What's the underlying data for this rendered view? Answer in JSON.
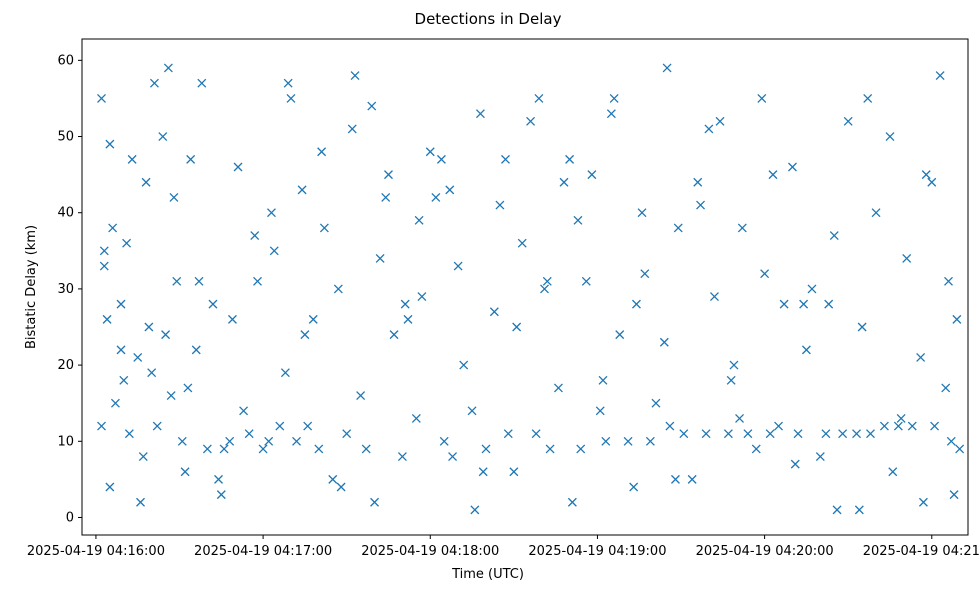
{
  "chart_data": {
    "type": "scatter",
    "title": "Detections in Delay",
    "xlabel": "Time (UTC)",
    "ylabel": "Bistatic Delay (km)",
    "x_axis_type": "datetime",
    "xlim": [
      "2025-04-19 04:15:55",
      "2025-04-19 04:21:13"
    ],
    "ylim": [
      -2.3,
      62.8
    ],
    "x_ticks": [
      "2025-04-19 04:16:00",
      "2025-04-19 04:17:00",
      "2025-04-19 04:18:00",
      "2025-04-19 04:19:00",
      "2025-04-19 04:20:00",
      "2025-04-19 04:21:00"
    ],
    "y_ticks": [
      "0",
      "10",
      "20",
      "30",
      "40",
      "50",
      "60"
    ],
    "marker": "x",
    "color": "#1f77b4",
    "grid": false,
    "legend": "none",
    "series": [
      {
        "x": [
          "2025-04-19 04:16:02",
          "2025-04-19 04:16:02",
          "2025-04-19 04:16:03",
          "2025-04-19 04:16:03",
          "2025-04-19 04:16:04",
          "2025-04-19 04:16:05",
          "2025-04-19 04:16:06",
          "2025-04-19 04:16:07",
          "2025-04-19 04:16:09",
          "2025-04-19 04:16:10",
          "2025-04-19 04:16:12",
          "2025-04-19 04:16:13",
          "2025-04-19 04:16:15",
          "2025-04-19 04:16:17",
          "2025-04-19 04:16:18",
          "2025-04-19 04:16:19",
          "2025-04-19 04:16:20",
          "2025-04-19 04:16:22",
          "2025-04-19 04:16:24",
          "2025-04-19 04:16:25",
          "2025-04-19 04:16:27",
          "2025-04-19 04:16:28",
          "2025-04-19 04:16:29",
          "2025-04-19 04:16:31",
          "2025-04-19 04:16:32",
          "2025-04-19 04:16:34",
          "2025-04-19 04:16:36",
          "2025-04-19 04:16:38",
          "2025-04-19 04:16:40",
          "2025-04-19 04:16:42",
          "2025-04-19 04:16:44",
          "2025-04-19 04:16:46",
          "2025-04-19 04:16:48",
          "2025-04-19 04:16:51",
          "2025-04-19 04:16:53",
          "2025-04-19 04:16:55",
          "2025-04-19 04:16:58",
          "2025-04-19 04:17:00",
          "2025-04-19 04:17:02",
          "2025-04-19 04:17:04",
          "2025-04-19 04:17:06",
          "2025-04-19 04:17:08",
          "2025-04-19 04:17:10",
          "2025-04-19 04:17:12",
          "2025-04-19 04:17:14",
          "2025-04-19 04:17:16",
          "2025-04-19 04:17:18",
          "2025-04-19 04:17:20",
          "2025-04-19 04:17:22",
          "2025-04-19 04:17:25",
          "2025-04-19 04:17:27",
          "2025-04-19 04:17:30",
          "2025-04-19 04:17:32",
          "2025-04-19 04:17:35",
          "2025-04-19 04:17:37",
          "2025-04-19 04:17:40",
          "2025-04-19 04:17:42",
          "2025-04-19 04:17:45",
          "2025-04-19 04:17:47",
          "2025-04-19 04:17:50",
          "2025-04-19 04:17:52",
          "2025-04-19 04:17:55",
          "2025-04-19 04:17:57",
          "2025-04-19 04:18:00",
          "2025-04-19 04:18:02",
          "2025-04-19 04:18:05",
          "2025-04-19 04:18:08",
          "2025-04-19 04:18:10",
          "2025-04-19 04:18:12",
          "2025-04-19 04:18:15",
          "2025-04-19 04:18:18",
          "2025-04-19 04:18:20",
          "2025-04-19 04:18:23",
          "2025-04-19 04:18:25",
          "2025-04-19 04:18:28",
          "2025-04-19 04:18:30",
          "2025-04-19 04:18:33",
          "2025-04-19 04:18:36",
          "2025-04-19 04:18:38",
          "2025-04-19 04:18:41",
          "2025-04-19 04:18:43",
          "2025-04-19 04:18:46",
          "2025-04-19 04:18:48",
          "2025-04-19 04:18:51",
          "2025-04-19 04:18:54",
          "2025-04-19 04:18:56",
          "2025-04-19 04:18:58",
          "2025-04-19 04:19:01",
          "2025-04-19 04:19:03",
          "2025-04-19 04:19:06",
          "2025-04-19 04:19:08",
          "2025-04-19 04:19:11",
          "2025-04-19 04:19:14",
          "2025-04-19 04:19:16",
          "2025-04-19 04:19:19",
          "2025-04-19 04:19:21",
          "2025-04-19 04:19:24",
          "2025-04-19 04:19:26",
          "2025-04-19 04:19:29",
          "2025-04-19 04:19:31",
          "2025-04-19 04:19:34",
          "2025-04-19 04:19:37",
          "2025-04-19 04:19:39",
          "2025-04-19 04:19:42",
          "2025-04-19 04:19:44",
          "2025-04-19 04:19:47",
          "2025-04-19 04:19:49",
          "2025-04-19 04:19:52",
          "2025-04-19 04:19:54",
          "2025-04-19 04:19:57",
          "2025-04-19 04:20:00",
          "2025-04-19 04:20:02",
          "2025-04-19 04:20:05",
          "2025-04-19 04:20:07",
          "2025-04-19 04:20:10",
          "2025-04-19 04:20:12",
          "2025-04-19 04:20:15",
          "2025-04-19 04:20:17",
          "2025-04-19 04:20:20",
          "2025-04-19 04:20:22",
          "2025-04-19 04:20:25",
          "2025-04-19 04:20:28",
          "2025-04-19 04:20:30",
          "2025-04-19 04:20:33",
          "2025-04-19 04:20:35",
          "2025-04-19 04:20:38",
          "2025-04-19 04:20:40",
          "2025-04-19 04:20:43",
          "2025-04-19 04:20:46",
          "2025-04-19 04:20:48",
          "2025-04-19 04:20:51",
          "2025-04-19 04:20:53",
          "2025-04-19 04:20:56",
          "2025-04-19 04:20:58",
          "2025-04-19 04:21:01",
          "2025-04-19 04:21:03",
          "2025-04-19 04:21:05",
          "2025-04-19 04:21:07",
          "2025-04-19 04:21:09",
          "2025-04-19 04:21:10",
          "2025-04-19 04:16:05",
          "2025-04-19 04:16:11",
          "2025-04-19 04:16:21",
          "2025-04-19 04:16:33",
          "2025-04-19 04:16:45",
          "2025-04-19 04:16:57",
          "2025-04-19 04:17:09",
          "2025-04-19 04:17:21",
          "2025-04-19 04:17:33",
          "2025-04-19 04:17:44",
          "2025-04-19 04:17:56",
          "2025-04-19 04:18:07",
          "2025-04-19 04:18:19",
          "2025-04-19 04:18:31",
          "2025-04-19 04:18:42",
          "2025-04-19 04:18:53",
          "2025-04-19 04:19:05",
          "2025-04-19 04:19:17",
          "2025-04-19 04:19:28",
          "2025-04-19 04:19:40",
          "2025-04-19 04:19:51",
          "2025-04-19 04:20:03",
          "2025-04-19 04:20:14",
          "2025-04-19 04:20:26",
          "2025-04-19 04:20:37",
          "2025-04-19 04:20:49",
          "2025-04-19 04:21:00",
          "2025-04-19 04:21:08",
          "2025-04-19 04:16:09",
          "2025-04-19 04:16:16",
          "2025-04-19 04:16:26",
          "2025-04-19 04:16:37",
          "2025-04-19 04:16:49",
          "2025-04-19 04:17:03",
          "2025-04-19 04:17:15",
          "2025-04-19 04:17:28",
          "2025-04-19 04:17:39",
          "2025-04-19 04:17:51",
          "2025-04-19 04:18:04",
          "2025-04-19 04:18:16",
          "2025-04-19 04:18:27",
          "2025-04-19 04:18:39",
          "2025-04-19 04:18:50",
          "2025-04-19 04:19:02",
          "2025-04-19 04:19:13",
          "2025-04-19 04:19:25",
          "2025-04-19 04:19:36",
          "2025-04-19 04:19:48",
          "2025-04-19 04:19:59",
          "2025-04-19 04:20:11",
          "2025-04-19 04:20:23",
          "2025-04-19 04:20:34",
          "2025-04-19 04:20:45",
          "2025-04-19 04:20:57",
          "2025-04-19 04:21:06"
        ],
        "y": [
          55,
          12,
          35,
          33,
          26,
          49,
          38,
          15,
          28,
          18,
          11,
          47,
          21,
          8,
          44,
          25,
          19,
          12,
          50,
          24,
          16,
          42,
          31,
          10,
          6,
          47,
          22,
          57,
          9,
          28,
          5,
          9,
          10,
          46,
          14,
          11,
          31,
          9,
          10,
          35,
          12,
          19,
          55,
          10,
          43,
          12,
          26,
          9,
          38,
          5,
          30,
          11,
          51,
          16,
          9,
          2,
          34,
          45,
          24,
          8,
          26,
          13,
          29,
          48,
          42,
          10,
          8,
          33,
          20,
          14,
          53,
          9,
          27,
          41,
          11,
          6,
          36,
          52,
          11,
          30,
          9,
          17,
          44,
          2,
          9,
          31,
          45,
          14,
          10,
          55,
          24,
          10,
          28,
          40,
          10,
          15,
          23,
          12,
          38,
          11,
          5,
          41,
          11,
          29,
          52,
          11,
          20,
          38,
          11,
          9,
          32,
          11,
          12,
          28,
          46,
          11,
          22,
          30,
          8,
          11,
          37,
          11,
          52,
          11,
          25,
          11,
          40,
          12,
          6,
          12,
          34,
          12,
          21,
          45,
          12,
          58,
          17,
          10,
          26,
          9,
          4,
          36,
          57,
          17,
          3,
          37,
          57,
          48,
          58,
          42,
          39,
          43,
          6,
          25,
          31,
          39,
          53,
          32,
          5,
          51,
          13,
          45,
          28,
          1,
          55,
          13,
          44,
          3,
          22,
          2,
          59,
          31,
          26,
          40,
          24,
          4,
          54,
          28,
          47,
          1,
          47,
          55,
          47,
          18,
          4,
          59,
          44,
          18,
          55,
          7,
          28,
          1,
          50,
          2,
          31
        ]
      }
    ]
  }
}
